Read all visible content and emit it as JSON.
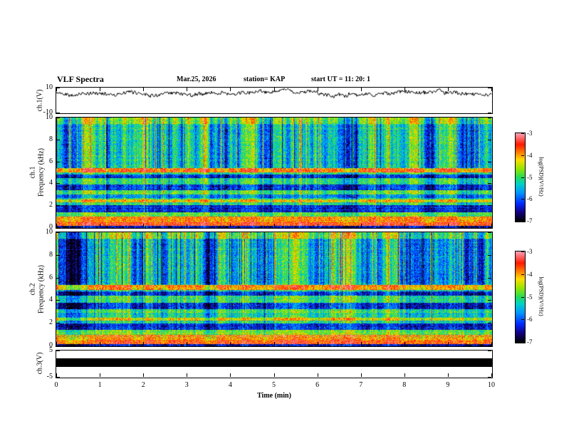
{
  "header": {
    "title": "VLF Spectra",
    "date": "Mar.25, 2026",
    "station": "station= KAP",
    "start_ut": "start UT =  11: 20: 1"
  },
  "xaxis": {
    "label": "Time (min)",
    "range": [
      0,
      10
    ],
    "ticks": [
      0,
      1,
      2,
      3,
      4,
      5,
      6,
      7,
      8,
      9,
      10
    ]
  },
  "colorbars": [
    {
      "label": "log(PSD)(V²/Hz)",
      "range": [
        -7,
        -3
      ],
      "ticks": [
        -3,
        -4,
        -5,
        -6,
        -7
      ]
    },
    {
      "label": "log(PSD)(V²/Hz)",
      "range": [
        -7,
        -3
      ],
      "ticks": [
        -3,
        -4,
        -5,
        -6,
        -7
      ]
    }
  ],
  "colormap": {
    "stops": [
      [
        -7.0,
        "#000000"
      ],
      [
        -6.6,
        "#14007d"
      ],
      [
        -6.2,
        "#0028ff"
      ],
      [
        -5.7,
        "#0096ff"
      ],
      [
        -5.3,
        "#00d2c8"
      ],
      [
        -5.0,
        "#23dc5a"
      ],
      [
        -4.6,
        "#96e600"
      ],
      [
        -4.2,
        "#ffdc00"
      ],
      [
        -3.9,
        "#ff8700"
      ],
      [
        -3.5,
        "#ff1900"
      ],
      [
        -3.0,
        "#ff9eb4"
      ]
    ]
  },
  "chart_data": [
    {
      "type": "line",
      "name": "ch1_voltage",
      "ylabel": "ch.1(V)",
      "ylim": [
        -10,
        10
      ],
      "yticks": [
        10,
        -10
      ],
      "mean_level": 5.5,
      "noise_amplitude": 2.5
    },
    {
      "type": "heatmap",
      "name": "ch1_spectrogram",
      "ylabel_line1": "ch.1",
      "ylabel_line2": "Frequency (kHz)",
      "ylim": [
        0,
        10
      ],
      "yticks": [
        0,
        2,
        4,
        6,
        8,
        10
      ],
      "zlabel": "log(PSD)(V²/Hz)",
      "zrange": [
        -7,
        -3
      ],
      "base_level": -5.15,
      "bands": [
        [
          0.0,
          0.25,
          -1.3
        ],
        [
          0.25,
          0.55,
          1.6
        ],
        [
          0.55,
          1.05,
          1.25
        ],
        [
          1.05,
          1.45,
          0.4
        ],
        [
          1.45,
          2.1,
          -1.05
        ],
        [
          2.35,
          2.6,
          0.95
        ],
        [
          2.75,
          3.05,
          -0.6
        ],
        [
          3.05,
          3.45,
          0.2
        ],
        [
          3.45,
          3.95,
          -1.0
        ],
        [
          3.95,
          4.55,
          0.1
        ],
        [
          4.55,
          4.9,
          -1.1
        ],
        [
          5.05,
          5.45,
          1.35
        ],
        [
          5.45,
          9.45,
          -0.2
        ],
        [
          9.45,
          10.01,
          0.45
        ]
      ]
    },
    {
      "type": "heatmap",
      "name": "ch2_spectrogram",
      "ylabel_line1": "ch.2",
      "ylabel_line2": "Frequency (kHz)",
      "ylim": [
        0,
        10
      ],
      "yticks": [
        0,
        2,
        4,
        6,
        8,
        10
      ],
      "zlabel": "log(PSD)(V²/Hz)",
      "zrange": [
        -7,
        -3
      ],
      "base_level": -5.2,
      "bands": [
        [
          0.0,
          0.25,
          -1.3
        ],
        [
          0.25,
          0.55,
          1.55
        ],
        [
          0.55,
          1.05,
          1.3
        ],
        [
          1.05,
          1.5,
          0.45
        ],
        [
          1.5,
          2.05,
          -1.0
        ],
        [
          2.3,
          2.55,
          0.95
        ],
        [
          2.95,
          3.3,
          0.25
        ],
        [
          3.3,
          3.85,
          -1.0
        ],
        [
          3.85,
          4.5,
          0.15
        ],
        [
          4.5,
          4.85,
          -1.0
        ],
        [
          5.0,
          5.4,
          1.25
        ],
        [
          5.5,
          9.45,
          -0.3
        ],
        [
          9.45,
          10.01,
          0.4
        ]
      ]
    },
    {
      "type": "line",
      "name": "ch3_voltage",
      "ylabel": "ch.3(V)",
      "ylim": [
        -5,
        5
      ],
      "yticks": [
        5,
        -5
      ],
      "bar_range": [
        2.0,
        -1.2
      ]
    }
  ]
}
